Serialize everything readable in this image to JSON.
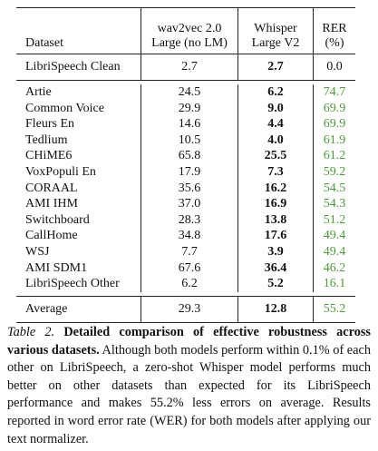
{
  "table": {
    "header": {
      "dataset": "Dataset",
      "wav2vec": [
        "wav2vec 2.0",
        "Large (no LM)"
      ],
      "whisper": [
        "Whisper",
        "Large V2"
      ],
      "rer": [
        "RER",
        "(%)"
      ]
    },
    "clean": [
      "LibriSpeech Clean",
      "2.7",
      "2.7",
      "0.0"
    ],
    "rows": [
      [
        "Artie",
        "24.5",
        "6.2",
        "74.7"
      ],
      [
        "Common Voice",
        "29.9",
        "9.0",
        "69.9"
      ],
      [
        "Fleurs En",
        "14.6",
        "4.4",
        "69.9"
      ],
      [
        "Tedlium",
        "10.5",
        "4.0",
        "61.9"
      ],
      [
        "CHiME6",
        "65.8",
        "25.5",
        "61.2"
      ],
      [
        "VoxPopuli En",
        "17.9",
        "7.3",
        "59.2"
      ],
      [
        "CORAAL",
        "35.6",
        "16.2",
        "54.5"
      ],
      [
        "AMI IHM",
        "37.0",
        "16.9",
        "54.3"
      ],
      [
        "Switchboard",
        "28.3",
        "13.8",
        "51.2"
      ],
      [
        "CallHome",
        "34.8",
        "17.6",
        "49.4"
      ],
      [
        "WSJ",
        "7.7",
        "3.9",
        "49.4"
      ],
      [
        "AMI SDM1",
        "67.6",
        "36.4",
        "46.2"
      ],
      [
        "LibriSpeech Other",
        "6.2",
        "5.2",
        "16.1"
      ]
    ],
    "average": [
      "Average",
      "29.3",
      "12.8",
      "55.2"
    ]
  },
  "caption": {
    "label": "Table 2.",
    "title": "Detailed comparison of effective robustness across various datasets.",
    "body": "Although both models perform within 0.1% of each other on LibriSpeech, a zero-shot Whisper model performs much better on other datasets than expected for its LibriSpeech performance and makes 55.2% less errors on average. Results reported in word error rate (WER) for both models after applying our text normalizer."
  }
}
